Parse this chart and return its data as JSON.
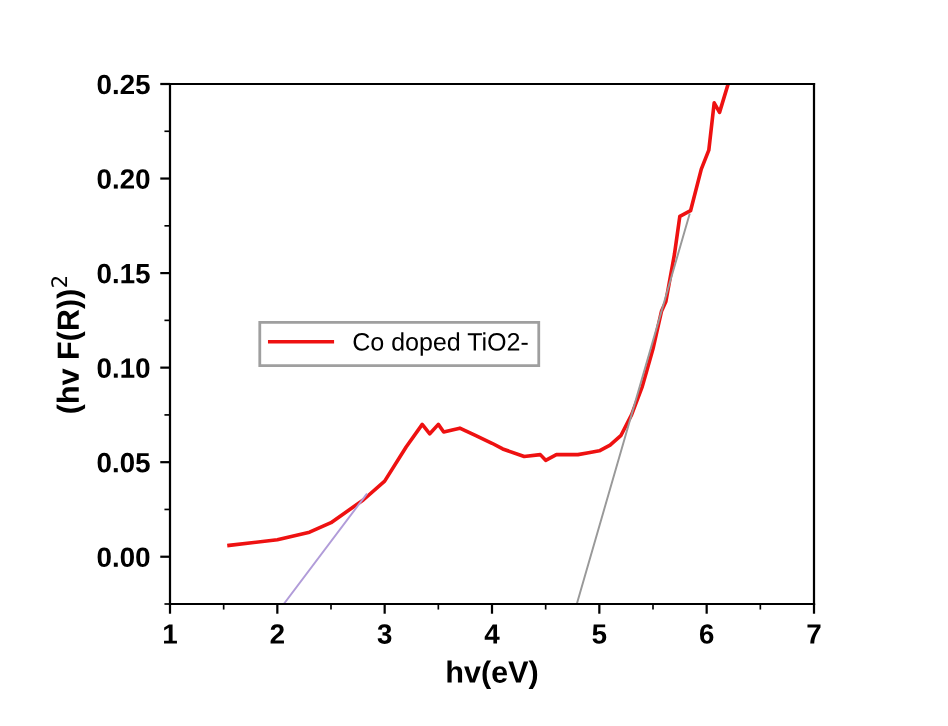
{
  "chart_data": {
    "type": "line",
    "xlabel": "hv(eV)",
    "ylabel": "(hv F(R))$^{2}$",
    "xlim": [
      1,
      7
    ],
    "ylim": [
      -0.025,
      0.25
    ],
    "xticks": [
      1,
      2,
      3,
      4,
      5,
      6,
      7
    ],
    "yticks": [
      {
        "value": 0,
        "label": "0.00"
      },
      {
        "value": 0.05,
        "label": "0.05"
      },
      {
        "value": 0.1,
        "label": "0.10"
      },
      {
        "value": 0.15,
        "label": "0.15"
      },
      {
        "value": 0.2,
        "label": "0.20"
      },
      {
        "value": 0.25,
        "label": "0.25"
      }
    ],
    "grid": false,
    "legend": "center left",
    "series": [
      {
        "name": "Co doped TiO2-",
        "color": "#ee1111",
        "x": [
          1.55,
          2.0,
          2.3,
          2.5,
          2.8,
          3.0,
          3.2,
          3.35,
          3.42,
          3.5,
          3.55,
          3.7,
          3.85,
          4.0,
          4.1,
          4.3,
          4.45,
          4.5,
          4.6,
          4.8,
          4.9,
          5.0,
          5.1,
          5.2,
          5.3,
          5.4,
          5.45,
          5.5,
          5.58,
          5.62,
          5.7,
          5.75,
          5.85,
          5.95,
          6.02,
          6.07,
          6.12,
          6.2
        ],
        "values": [
          0.006,
          0.009,
          0.013,
          0.018,
          0.03,
          0.04,
          0.058,
          0.07,
          0.065,
          0.07,
          0.066,
          0.068,
          0.064,
          0.06,
          0.057,
          0.053,
          0.054,
          0.051,
          0.054,
          0.054,
          0.055,
          0.056,
          0.059,
          0.064,
          0.075,
          0.09,
          0.1,
          0.11,
          0.13,
          0.135,
          0.16,
          0.18,
          0.183,
          0.205,
          0.215,
          0.24,
          0.235,
          0.25
        ]
      },
      {
        "color": "#b19cd9",
        "x": [
          2.06,
          2.83
        ],
        "values": [
          -0.025,
          0.033
        ]
      },
      {
        "color": "#999999",
        "x": [
          4.79,
          5.84
        ],
        "values": [
          -0.025,
          0.181
        ]
      }
    ]
  }
}
